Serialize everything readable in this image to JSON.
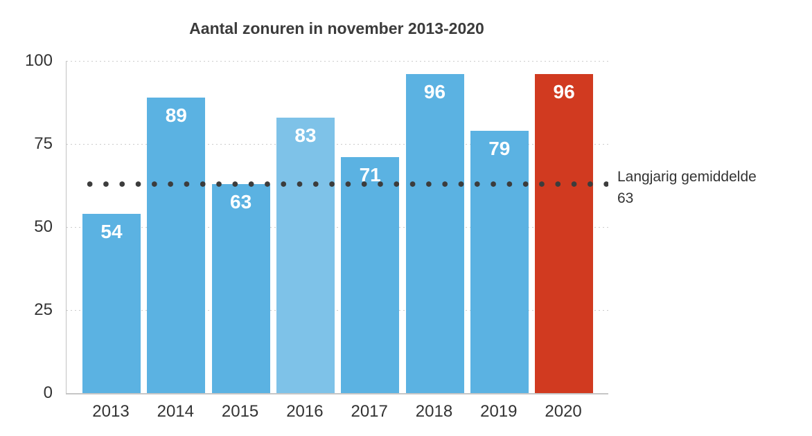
{
  "chart_data": {
    "type": "bar",
    "title": "Aantal zonuren in november 2013-2020",
    "categories": [
      "2013",
      "2014",
      "2015",
      "2016",
      "2017",
      "2018",
      "2019",
      "2020"
    ],
    "values": [
      54,
      89,
      63,
      83,
      71,
      96,
      79,
      96
    ],
    "bar_colors": [
      "#5bb2e2",
      "#5bb2e2",
      "#5bb2e2",
      "#7ec2e8",
      "#5bb2e2",
      "#5bb2e2",
      "#5bb2e2",
      "#d13a20"
    ],
    "highlight_category": "2020",
    "ylim": [
      0,
      100
    ],
    "yticks": [
      0,
      25,
      50,
      75,
      100
    ],
    "xlabel": "",
    "ylabel": "",
    "grid": "horizontal dotted",
    "legend_position": "none",
    "value_labels_position": "inside-top",
    "average_line": {
      "value": 63,
      "label": "Langjarig gemiddelde",
      "display_value": "63",
      "color": "#3c3c3c",
      "style": "dotted"
    },
    "colors": {
      "bar_default": "#5bb2e2",
      "bar_light": "#7ec2e8",
      "bar_highlight": "#d13a20",
      "grid": "#cbcbcb",
      "axis": "#c2c2c2",
      "tick_text": "#333333",
      "title_text": "#3b3b3b",
      "value_label_text": "#ffffff"
    }
  }
}
